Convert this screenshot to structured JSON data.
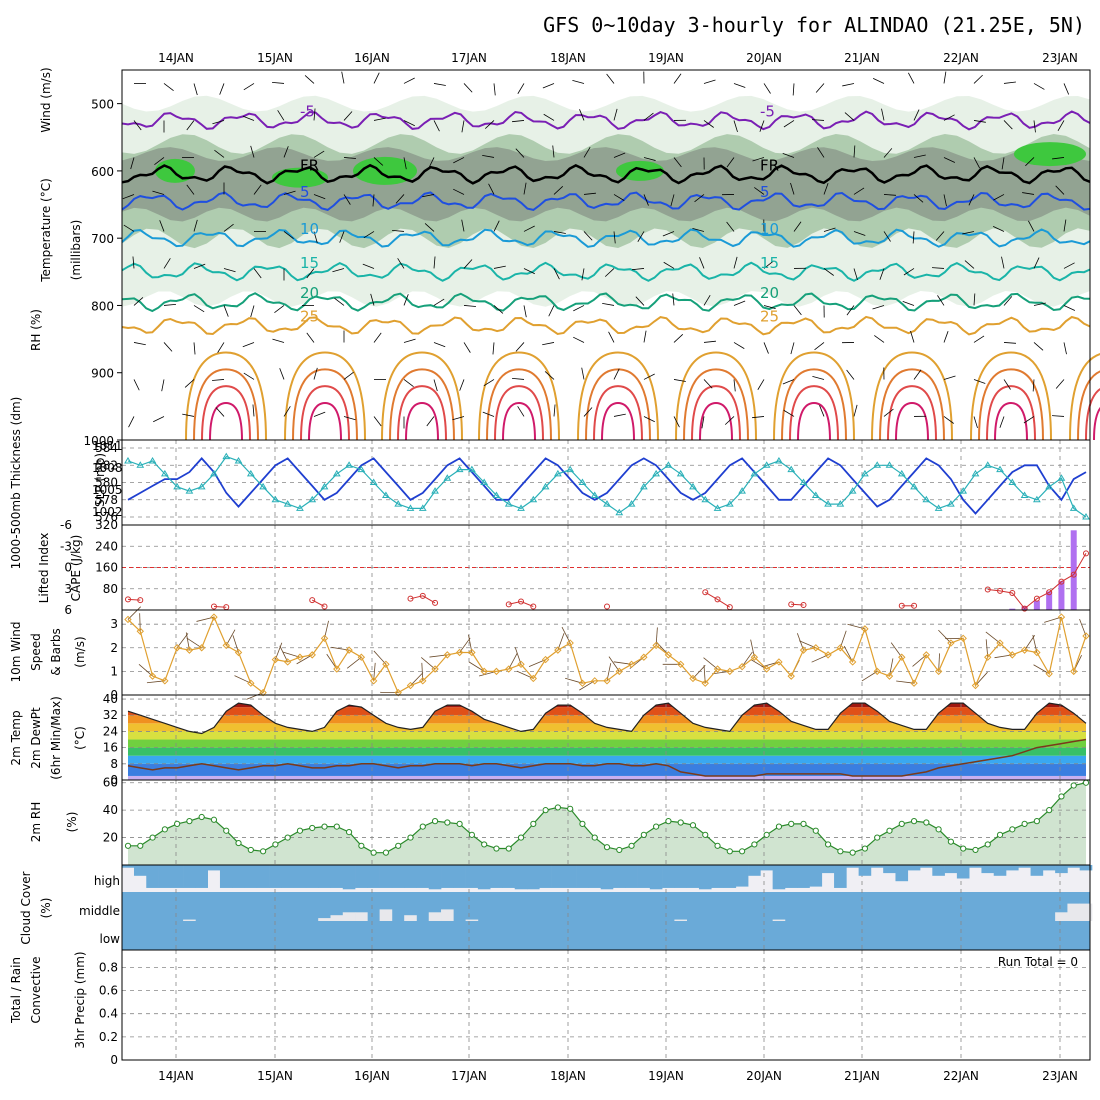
{
  "chart_data": [
    {
      "panel": "upper-air",
      "type": "heatmap",
      "title": "GFS 0~10day 3-hourly for ALINDAO (21.25E, 5N)",
      "x_ticks": [
        "14JAN",
        "15JAN",
        "16JAN",
        "17JAN",
        "18JAN",
        "19JAN",
        "20JAN",
        "21JAN",
        "22JAN",
        "23JAN"
      ],
      "ylabel_parts": [
        "RH (%)",
        "Temperature (°C)",
        "Wind (m/s)",
        "(millibars)"
      ],
      "y_ticks": [
        "500",
        "600",
        "700",
        "800",
        "900",
        "1000"
      ],
      "ylim": [
        1000,
        450
      ],
      "fill_colors": {
        "rh_light": "#e4f0e4",
        "rh_mid": "#a8c8a8",
        "rh_dark": "#8f9f8f",
        "rh_green": "#3ec83e"
      },
      "isotherms": [
        {
          "label": "-5",
          "y": 525,
          "color": "#7a1fb4"
        },
        {
          "label": "FR",
          "y": 605,
          "color": "#000000"
        },
        {
          "label": "5",
          "y": 645,
          "color": "#1f4fe0"
        },
        {
          "label": "10",
          "y": 700,
          "color": "#1a9ad6"
        },
        {
          "label": "15",
          "y": 750,
          "color": "#1ab4a8"
        },
        {
          "label": "20",
          "y": 795,
          "color": "#16a07a"
        },
        {
          "label": "25",
          "y": 830,
          "color": "#e0a030"
        }
      ]
    },
    {
      "panel": "thickness-slp",
      "type": "line",
      "ylabel_left": "1000-500mb Thickness (dm)",
      "ylabel_right": "SLP (mb)",
      "y_ticks_left": [
        "584",
        "582",
        "580",
        "578",
        "576"
      ],
      "y_ticks_right": [
        "1011",
        "1008",
        "1005",
        "1002"
      ],
      "series": [
        {
          "name": "SLP (mb)",
          "color": "#1f3fd0",
          "values": [
            1004,
            1005,
            1006,
            1007,
            1007,
            1008,
            1010,
            1008,
            1005,
            1003,
            1005,
            1007,
            1009,
            1010,
            1008,
            1006,
            1004,
            1005,
            1007,
            1009,
            1010,
            1008,
            1006,
            1004,
            1005,
            1007,
            1009,
            1010,
            1008,
            1006,
            1004,
            1004,
            1006,
            1008,
            1010,
            1009,
            1007,
            1005,
            1004,
            1005,
            1007,
            1009,
            1010,
            1009,
            1007,
            1005,
            1004,
            1005,
            1007,
            1009,
            1010,
            1008,
            1006,
            1004,
            1004,
            1006,
            1008,
            1010,
            1009,
            1007,
            1005,
            1003,
            1004,
            1006,
            1008,
            1010,
            1009,
            1007,
            1004,
            1002,
            1004,
            1006,
            1008,
            1009,
            1009,
            1006,
            1004,
            1007,
            1008
          ]
        },
        {
          "name": "1000-500mb Thickness (dm)",
          "color": "#2ab0b8",
          "values": [
            582.5,
            582,
            582.5,
            581,
            579.5,
            579,
            579.5,
            581,
            583,
            582.5,
            581,
            579.5,
            578,
            577.5,
            577,
            578,
            579.5,
            581,
            582,
            581.5,
            580,
            578.5,
            577.5,
            577,
            577,
            579,
            580.5,
            581.5,
            581.5,
            580,
            578.5,
            577.5,
            577,
            578,
            579.5,
            581,
            581.5,
            580,
            578.5,
            577.5,
            576.5,
            577.5,
            579.5,
            581,
            582,
            581,
            579.5,
            578,
            577,
            577.5,
            579,
            581,
            582,
            582.5,
            581.5,
            580,
            578.5,
            577.5,
            577.5,
            579,
            581,
            582,
            582,
            581,
            579.5,
            578,
            577,
            577.5,
            579,
            581,
            582,
            581.5,
            580,
            578.5,
            578,
            579.5,
            580.5,
            577,
            576
          ]
        }
      ]
    },
    {
      "panel": "li-cape",
      "type": "bar",
      "ylabel_left": "Lifted Index",
      "ylabel_right": "CAPE (J/kg)",
      "y_ticks_left": [
        "-6",
        "-3",
        "0",
        "3",
        "6"
      ],
      "y_ticks_right": [
        "320",
        "240",
        "160",
        "80"
      ],
      "series": [
        {
          "name": "Lifted Index",
          "color": "#d03030",
          "values": [
            4.5,
            4.6,
            null,
            null,
            null,
            null,
            null,
            5.5,
            5.6,
            null,
            null,
            null,
            null,
            null,
            null,
            4.6,
            5.5,
            null,
            null,
            null,
            null,
            null,
            null,
            4.4,
            4.0,
            5.0,
            null,
            null,
            null,
            null,
            null,
            5.2,
            4.8,
            5.5,
            null,
            null,
            null,
            null,
            null,
            5.5,
            null,
            null,
            null,
            null,
            null,
            null,
            null,
            3.5,
            4.5,
            5.6,
            null,
            null,
            null,
            null,
            5.2,
            5.3,
            null,
            null,
            null,
            null,
            null,
            null,
            null,
            5.4,
            5.4,
            null,
            null,
            null,
            null,
            null,
            3.1,
            3.3,
            3.6,
            5.8,
            4.4,
            3.5,
            2.0,
            1.0,
            -2.0
          ]
        },
        {
          "name": "CAPE (J/kg)",
          "color": "#b070f0",
          "values": [
            0,
            0,
            0,
            0,
            0,
            0,
            0,
            0,
            0,
            0,
            0,
            0,
            0,
            0,
            0,
            0,
            0,
            0,
            0,
            0,
            0,
            0,
            0,
            0,
            0,
            0,
            0,
            0,
            0,
            0,
            0,
            0,
            0,
            0,
            0,
            0,
            0,
            0,
            0,
            0,
            0,
            0,
            0,
            0,
            0,
            0,
            0,
            0,
            0,
            0,
            0,
            0,
            0,
            0,
            0,
            0,
            0,
            0,
            0,
            0,
            0,
            0,
            0,
            0,
            0,
            0,
            0,
            0,
            0,
            0,
            0,
            0,
            5,
            15,
            35,
            70,
            110,
            300,
            0
          ]
        }
      ]
    },
    {
      "panel": "wind10m",
      "type": "line",
      "ylabel": "10m Wind Speed & Barbs (m/s)",
      "y_ticks": [
        "0",
        "1",
        "2",
        "3"
      ],
      "ylim": [
        0,
        3.6
      ],
      "series": [
        {
          "name": "10m Wind Speed",
          "color": "#e0a030",
          "values": [
            3.2,
            2.7,
            0.8,
            0.6,
            2.0,
            1.9,
            2.0,
            3.3,
            2.1,
            1.8,
            0.5,
            0.1,
            1.5,
            1.4,
            1.6,
            1.7,
            2.4,
            1.1,
            1.9,
            1.6,
            0.6,
            1.3,
            0.1,
            0.4,
            0.6,
            1.1,
            1.7,
            1.8,
            1.8,
            1.0,
            1.0,
            1.1,
            1.3,
            0.7,
            1.5,
            1.9,
            2.2,
            0.5,
            0.6,
            0.6,
            1.0,
            1.3,
            1.6,
            2.1,
            1.7,
            1.3,
            0.7,
            0.5,
            1.1,
            1.0,
            1.2,
            1.6,
            1.1,
            1.4,
            0.8,
            1.9,
            2.0,
            1.7,
            2.0,
            1.4,
            2.8,
            1.0,
            0.8,
            1.6,
            0.5,
            1.7,
            1.0,
            2.2,
            2.4,
            0.4,
            1.6,
            2.2,
            1.7,
            1.9,
            1.8,
            0.9,
            3.3,
            1.0,
            2.5
          ]
        }
      ]
    },
    {
      "panel": "temp2m",
      "type": "area",
      "ylabel": "2m Temp 2m DewPt (6hr Min/Max) (°C)",
      "y_ticks": [
        "0",
        "8",
        "16",
        "24",
        "32",
        "40"
      ],
      "ylim": [
        0,
        42
      ],
      "series": [
        {
          "name": "2m Temp",
          "color": "#222222",
          "values": [
            34,
            32,
            30,
            28,
            26,
            24,
            23,
            26,
            34,
            38,
            37,
            32,
            28,
            26,
            25,
            24,
            26,
            34,
            37,
            36,
            32,
            28,
            26,
            25,
            26,
            34,
            37,
            37,
            34,
            30,
            28,
            26,
            24,
            25,
            33,
            37,
            37,
            33,
            28,
            26,
            25,
            24,
            32,
            37,
            38,
            33,
            28,
            26,
            25,
            24,
            32,
            37,
            38,
            34,
            29,
            27,
            25,
            25,
            33,
            38,
            38,
            34,
            29,
            27,
            25,
            25,
            33,
            38,
            38,
            33,
            28,
            26,
            25,
            25,
            33,
            38,
            37,
            33,
            28
          ]
        },
        {
          "name": "2m DewPt",
          "color": "#7a3a1a",
          "values": [
            7,
            6,
            5,
            6,
            6,
            7,
            8,
            7,
            6,
            5,
            6,
            7,
            7,
            8,
            7,
            6,
            6,
            7,
            7,
            8,
            8,
            7,
            6,
            7,
            7,
            8,
            8,
            8,
            7,
            8,
            8,
            7,
            6,
            7,
            8,
            8,
            8,
            7,
            7,
            8,
            8,
            7,
            7,
            8,
            7,
            4,
            3,
            2,
            2,
            2,
            2,
            2,
            3,
            3,
            3,
            3,
            3,
            3,
            3,
            2,
            2,
            2,
            2,
            2,
            3,
            4,
            6,
            7,
            8,
            9,
            10,
            11,
            12,
            14,
            16,
            17,
            18,
            19,
            20
          ]
        }
      ]
    },
    {
      "panel": "rh2m",
      "type": "area",
      "ylabel": "2m RH (%)",
      "y_ticks": [
        "20",
        "40",
        "60"
      ],
      "ylim": [
        0,
        62
      ],
      "series": [
        {
          "name": "2m RH",
          "color": "#2a8a2a",
          "values": [
            14,
            14,
            20,
            26,
            30,
            32,
            35,
            33,
            25,
            16,
            11,
            10,
            15,
            20,
            25,
            27,
            28,
            28,
            24,
            14,
            9,
            9,
            14,
            20,
            28,
            32,
            31,
            30,
            22,
            15,
            12,
            12,
            20,
            30,
            40,
            42,
            41,
            30,
            20,
            13,
            11,
            14,
            22,
            28,
            32,
            31,
            29,
            22,
            14,
            10,
            10,
            15,
            22,
            28,
            30,
            30,
            25,
            15,
            10,
            9,
            12,
            20,
            25,
            30,
            32,
            31,
            26,
            17,
            12,
            11,
            15,
            22,
            26,
            30,
            32,
            40,
            50,
            58,
            60
          ]
        }
      ]
    },
    {
      "panel": "cloud",
      "type": "bar",
      "ylabel": "Cloud Cover (%)",
      "levels": [
        "high",
        "middle",
        "low"
      ],
      "color": "#6aaad8",
      "background": "#f0eff4",
      "series": [
        {
          "name": "high",
          "values": [
            10,
            40,
            85,
            85,
            85,
            85,
            85,
            20,
            85,
            85,
            85,
            85,
            85,
            85,
            85,
            85,
            85,
            85,
            90,
            85,
            85,
            85,
            85,
            85,
            85,
            90,
            85,
            85,
            85,
            90,
            85,
            85,
            90,
            90,
            85,
            85,
            85,
            85,
            85,
            90,
            85,
            85,
            85,
            90,
            85,
            85,
            85,
            90,
            85,
            85,
            80,
            40,
            20,
            90,
            85,
            85,
            80,
            30,
            85,
            10,
            40,
            10,
            30,
            60,
            20,
            10,
            40,
            30,
            50,
            10,
            30,
            40,
            20,
            10,
            40,
            20,
            30,
            10,
            20
          ]
        },
        {
          "name": "middle",
          "values": [
            0,
            0,
            0,
            0,
            0,
            5,
            0,
            0,
            0,
            0,
            0,
            0,
            0,
            0,
            0,
            0,
            10,
            20,
            30,
            30,
            0,
            40,
            0,
            20,
            0,
            30,
            40,
            0,
            5,
            0,
            0,
            0,
            0,
            0,
            0,
            0,
            0,
            0,
            0,
            0,
            0,
            0,
            0,
            0,
            0,
            5,
            0,
            0,
            0,
            0,
            0,
            0,
            0,
            5,
            0,
            0,
            0,
            0,
            0,
            0,
            0,
            0,
            0,
            0,
            0,
            0,
            0,
            0,
            0,
            0,
            0,
            0,
            0,
            0,
            0,
            0,
            30,
            60,
            60
          ]
        },
        {
          "name": "low",
          "values": [
            0,
            0,
            0,
            0,
            0,
            0,
            0,
            0,
            0,
            0,
            0,
            0,
            0,
            0,
            0,
            0,
            0,
            0,
            0,
            0,
            0,
            0,
            0,
            0,
            0,
            0,
            0,
            0,
            0,
            0,
            0,
            0,
            0,
            0,
            0,
            0,
            0,
            0,
            0,
            0,
            0,
            0,
            0,
            0,
            0,
            0,
            0,
            0,
            0,
            0,
            0,
            0,
            0,
            0,
            0,
            0,
            0,
            0,
            0,
            0,
            0,
            0,
            0,
            0,
            0,
            0,
            0,
            0,
            0,
            0,
            0,
            0,
            0,
            0,
            0,
            0,
            0,
            0,
            0
          ]
        }
      ]
    },
    {
      "panel": "precip",
      "type": "bar",
      "ylabel_parts": [
        "Total / Rain",
        "Convective",
        "3hr Precip (mm)"
      ],
      "y_ticks": [
        "0",
        "0.2",
        "0.4",
        "0.6",
        "0.8"
      ],
      "ylim": [
        0,
        0.95
      ],
      "annotation": "Run Total = 0",
      "series": [
        {
          "name": "Total / Rain",
          "color": "#3ec83e",
          "values": []
        },
        {
          "name": "Convective",
          "color": "#e03030",
          "values": []
        }
      ]
    }
  ]
}
